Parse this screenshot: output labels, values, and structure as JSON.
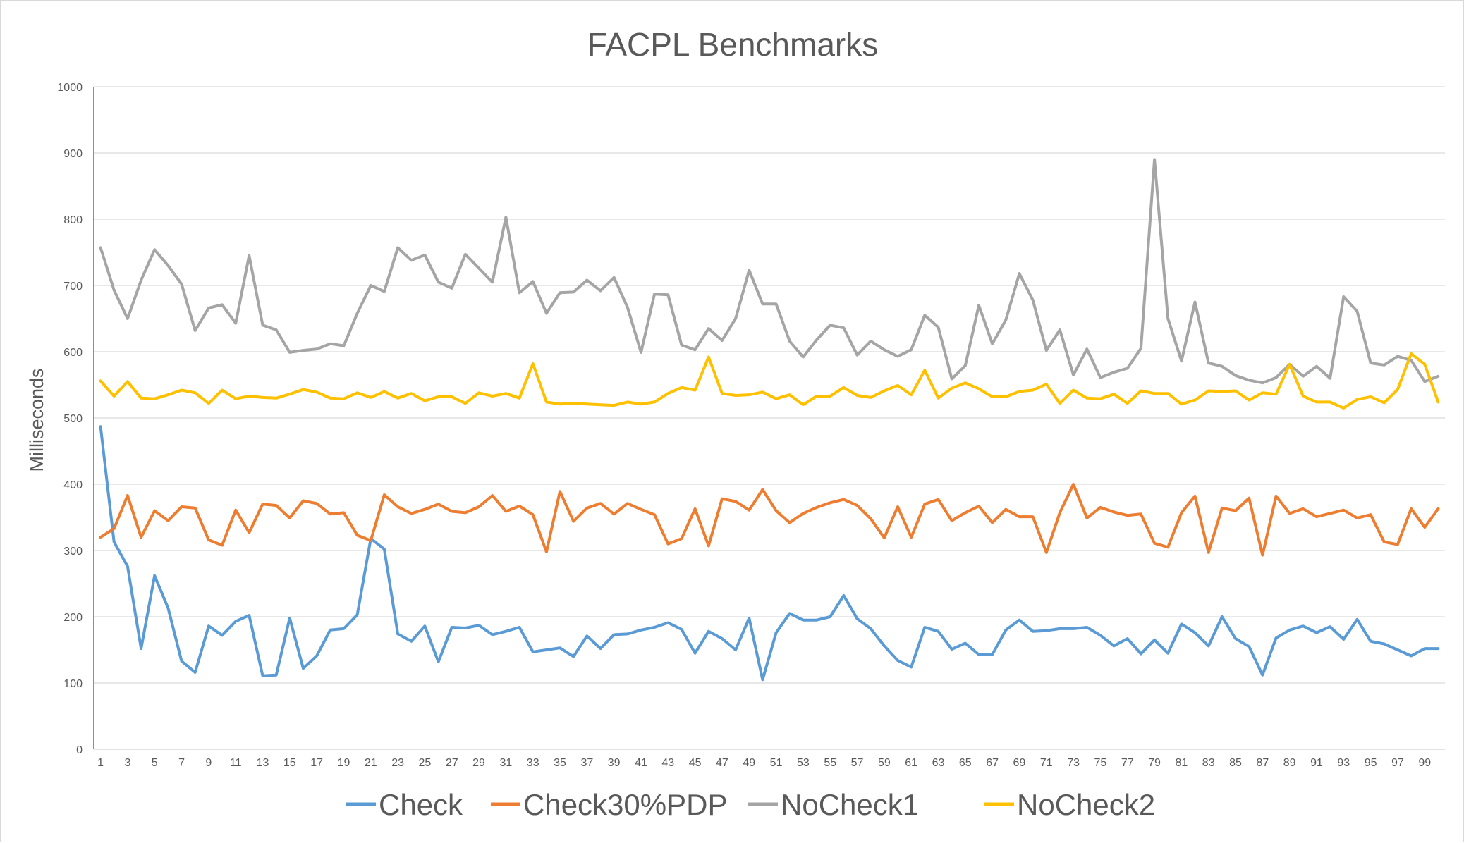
{
  "chart_data": {
    "type": "line",
    "title": "FACPL Benchmarks",
    "xlabel": "",
    "ylabel": "Milliseconds",
    "ylim": [
      0,
      1000
    ],
    "yticks": [
      0,
      100,
      200,
      300,
      400,
      500,
      600,
      700,
      800,
      900,
      1000
    ],
    "xticks": [
      1,
      3,
      5,
      7,
      9,
      11,
      13,
      15,
      17,
      19,
      21,
      23,
      25,
      27,
      29,
      31,
      33,
      35,
      37,
      39,
      41,
      43,
      45,
      47,
      49,
      51,
      53,
      55,
      57,
      59,
      61,
      63,
      65,
      67,
      69,
      71,
      73,
      75,
      77,
      79,
      81,
      83,
      85,
      87,
      89,
      91,
      93,
      95,
      97,
      99
    ],
    "x_count": 100,
    "grid": true,
    "legend_position": "bottom",
    "series": [
      {
        "name": "Check",
        "color": "#5b9bd5",
        "values": [
          487,
          313,
          276,
          152,
          262,
          213,
          133,
          116,
          186,
          172,
          193,
          202,
          111,
          112,
          198,
          122,
          141,
          180,
          182,
          203,
          318,
          302,
          174,
          163,
          186,
          132,
          184,
          183,
          187,
          173,
          178,
          184,
          147,
          150,
          153,
          140,
          171,
          152,
          173,
          174,
          180,
          184,
          191,
          181,
          145,
          178,
          167,
          150,
          198,
          105,
          176,
          205,
          195,
          195,
          200,
          232,
          197,
          182,
          156,
          134,
          124,
          184,
          178,
          151,
          160,
          143,
          143,
          180,
          195,
          178,
          179,
          182,
          182,
          184,
          172,
          156,
          167,
          144,
          165,
          145,
          189,
          176,
          156,
          200,
          167,
          155,
          112,
          168,
          180,
          186,
          176,
          185,
          166,
          196,
          163,
          159,
          150,
          141,
          152,
          152
        ]
      },
      {
        "name": "Check30%PDP",
        "color": "#ed7d31",
        "values": [
          320,
          333,
          383,
          320,
          360,
          345,
          366,
          364,
          316,
          308,
          361,
          327,
          370,
          368,
          349,
          375,
          371,
          355,
          357,
          323,
          315,
          384,
          366,
          356,
          362,
          370,
          359,
          357,
          366,
          383,
          359,
          367,
          354,
          298,
          389,
          344,
          364,
          371,
          355,
          371,
          362,
          354,
          310,
          318,
          363,
          307,
          378,
          374,
          361,
          392,
          360,
          342,
          356,
          365,
          372,
          377,
          368,
          348,
          319,
          366,
          320,
          370,
          377,
          345,
          357,
          367,
          342,
          362,
          351,
          351,
          297,
          357,
          400,
          349,
          365,
          358,
          353,
          355,
          311,
          305,
          357,
          382,
          297,
          364,
          360,
          379,
          293,
          382,
          356,
          363,
          351,
          356,
          361,
          349,
          354,
          313,
          309,
          363,
          335,
          363
        ]
      },
      {
        "name": "NoCheck1",
        "color": "#a5a5a5",
        "values": [
          757,
          693,
          650,
          708,
          754,
          730,
          702,
          632,
          666,
          671,
          643,
          745,
          640,
          633,
          599,
          602,
          604,
          612,
          609,
          658,
          700,
          691,
          757,
          738,
          746,
          705,
          696,
          747,
          726,
          705,
          803,
          689,
          706,
          658,
          689,
          690,
          708,
          692,
          712,
          667,
          599,
          687,
          686,
          610,
          603,
          635,
          617,
          650,
          723,
          672,
          672,
          616,
          592,
          618,
          640,
          636,
          595,
          616,
          603,
          593,
          603,
          655,
          637,
          559,
          579,
          670,
          612,
          648,
          718,
          678,
          602,
          633,
          565,
          604,
          561,
          569,
          575,
          605,
          890,
          650,
          586,
          675,
          583,
          578,
          564,
          557,
          553,
          561,
          581,
          563,
          578,
          560,
          683,
          661,
          583,
          580,
          593,
          587,
          555,
          563
        ]
      },
      {
        "name": "NoCheck2",
        "color": "#ffc000",
        "values": [
          556,
          533,
          555,
          530,
          529,
          535,
          542,
          538,
          522,
          542,
          529,
          533,
          531,
          530,
          536,
          543,
          539,
          530,
          529,
          538,
          531,
          540,
          530,
          537,
          526,
          532,
          532,
          522,
          538,
          533,
          537,
          530,
          582,
          524,
          521,
          522,
          521,
          520,
          519,
          524,
          521,
          524,
          537,
          546,
          542,
          592,
          537,
          534,
          535,
          539,
          529,
          535,
          520,
          533,
          533,
          546,
          534,
          531,
          541,
          549,
          535,
          572,
          530,
          545,
          553,
          544,
          532,
          532,
          540,
          542,
          551,
          522,
          542,
          530,
          529,
          536,
          522,
          541,
          537,
          537,
          521,
          527,
          541,
          540,
          541,
          527,
          538,
          536,
          581,
          533,
          524,
          524,
          515,
          528,
          532,
          523,
          543,
          597,
          581,
          524
        ]
      }
    ]
  }
}
